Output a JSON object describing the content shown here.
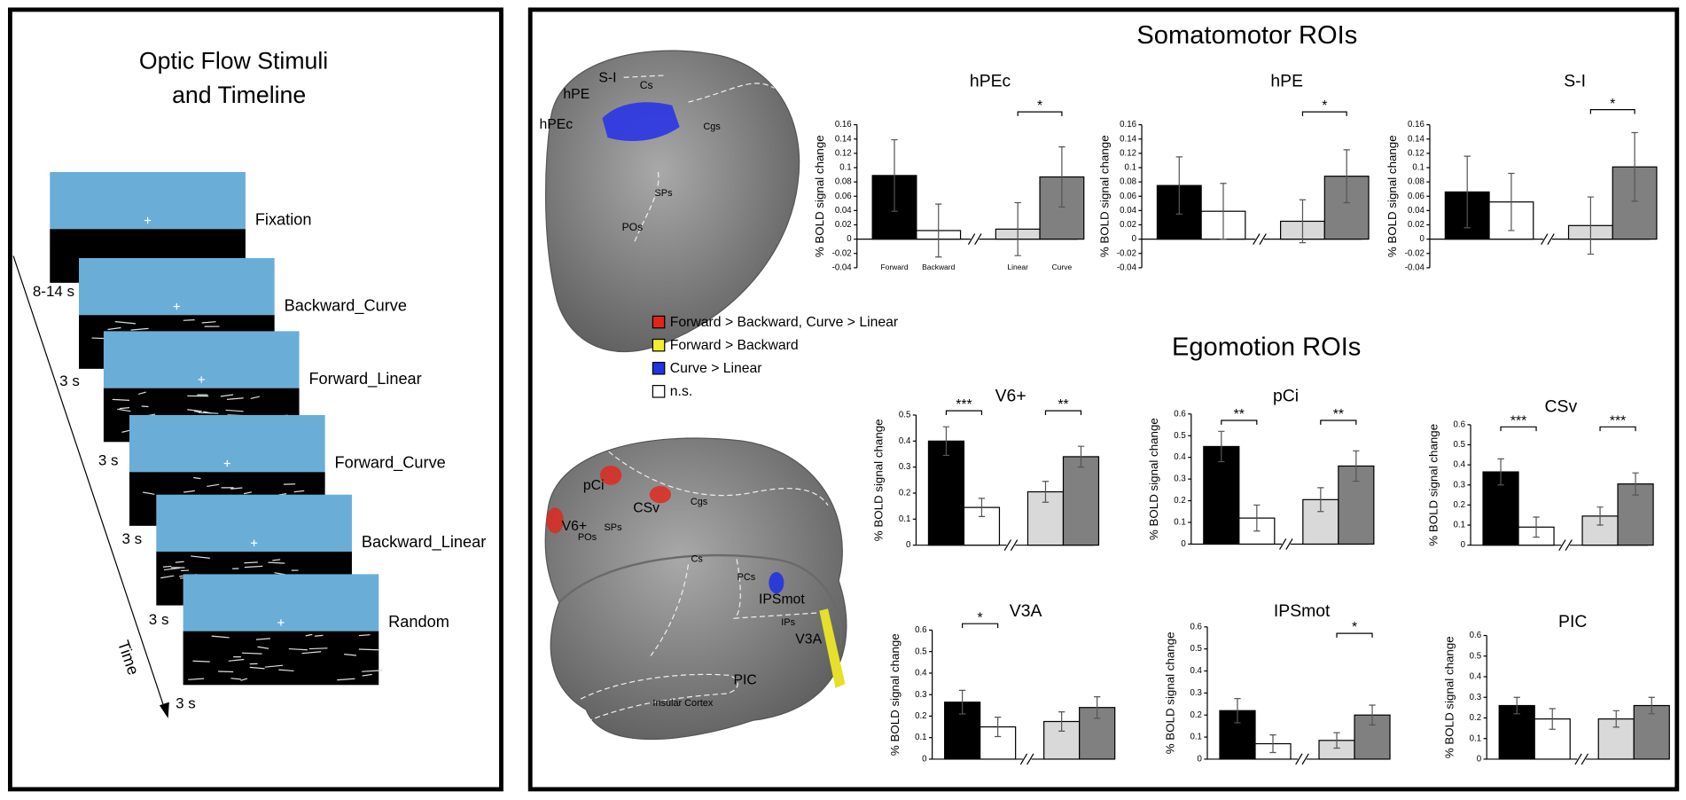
{
  "timeline": {
    "title_lines": [
      "Optic Flow Stimuli",
      "and Timeline"
    ],
    "frames": [
      {
        "label": "Fixation",
        "duration": "8-14 s"
      },
      {
        "label": "Backward_Curve",
        "duration": "3 s"
      },
      {
        "label": "Forward_Linear",
        "duration": "3 s"
      },
      {
        "label": "Forward_Curve",
        "duration": "3 s"
      },
      {
        "label": "Backward_Linear",
        "duration": "3 s"
      },
      {
        "label": "Random",
        "duration": "3 s"
      }
    ],
    "axis_label": "Time"
  },
  "section_titles": [
    "Somatomotor ROIs",
    "Egomotion ROIs"
  ],
  "legend": [
    {
      "label": "Forward > Backward, Curve > Linear",
      "color": "#e3241c"
    },
    {
      "label": "Forward > Backward",
      "color": "#f2ee2e"
    },
    {
      "label": "Curve > Linear",
      "color": "#2233e0"
    },
    {
      "label": "n.s.",
      "color": "#ffffff"
    }
  ],
  "brain_labels": {
    "top": [
      "S-I",
      "Cs",
      "hPE",
      "hPEc",
      "Cgs",
      "SPs",
      "POs"
    ],
    "bottom": [
      "pCi",
      "CSv",
      "Cgs",
      "V6+",
      "POs",
      "SPs",
      "Cs",
      "PCs",
      "IPSmot",
      "IPs",
      "V3A",
      "Insular Cortex",
      "PIC"
    ]
  },
  "chart_data": [
    {
      "type": "bar",
      "title": "hPEc",
      "y_label": "% BOLD signal change",
      "categories": [
        "Forward",
        "Backward",
        "Linear",
        "Curve"
      ],
      "colors": [
        "#000000",
        "#ffffff",
        "#d9d9d9",
        "#808080"
      ],
      "values": [
        0.089,
        0.012,
        0.014,
        0.087
      ],
      "errors": [
        0.05,
        0.037,
        0.037,
        0.042
      ],
      "significance": [
        null,
        "*"
      ],
      "ylim": [
        -0.04,
        0.16
      ],
      "yticks": [
        -0.04,
        -0.02,
        0,
        0.02,
        0.04,
        0.06,
        0.08,
        0.1,
        0.12,
        0.14,
        0.16
      ]
    },
    {
      "type": "bar",
      "title": "hPE",
      "y_label": "% BOLD signal change",
      "categories": [
        null,
        null,
        null,
        null
      ],
      "colors": [
        "#000000",
        "#ffffff",
        "#d9d9d9",
        "#808080"
      ],
      "values": [
        0.075,
        0.039,
        0.025,
        0.088
      ],
      "errors": [
        0.04,
        0.039,
        0.03,
        0.037
      ],
      "significance": [
        null,
        "*"
      ],
      "ylim": [
        -0.04,
        0.16
      ],
      "yticks": [
        -0.04,
        -0.02,
        0,
        0.02,
        0.04,
        0.06,
        0.08,
        0.1,
        0.12,
        0.14,
        0.16
      ]
    },
    {
      "type": "bar",
      "title": "S-I",
      "y_label": "% BOLD signal change",
      "categories": [
        null,
        null,
        null,
        null
      ],
      "colors": [
        "#000000",
        "#ffffff",
        "#d9d9d9",
        "#808080"
      ],
      "values": [
        0.066,
        0.052,
        0.019,
        0.101
      ],
      "errors": [
        0.05,
        0.04,
        0.04,
        0.048
      ],
      "significance": [
        null,
        "*"
      ],
      "ylim": [
        -0.04,
        0.16
      ],
      "yticks": [
        -0.04,
        -0.02,
        0,
        0.02,
        0.04,
        0.06,
        0.08,
        0.1,
        0.12,
        0.14,
        0.16
      ]
    },
    {
      "type": "bar",
      "title": "V6+",
      "y_label": "% BOLD signal change",
      "categories": [
        null,
        null,
        null,
        null
      ],
      "colors": [
        "#000000",
        "#ffffff",
        "#d9d9d9",
        "#808080"
      ],
      "values": [
        0.4,
        0.145,
        0.205,
        0.34
      ],
      "errors": [
        0.055,
        0.035,
        0.04,
        0.04
      ],
      "significance": [
        "***",
        "**"
      ],
      "ylim": [
        0,
        0.5
      ],
      "yticks": [
        0,
        0.1,
        0.2,
        0.3,
        0.4,
        0.5
      ]
    },
    {
      "type": "bar",
      "title": "pCi",
      "y_label": "% BOLD signal change",
      "categories": [
        null,
        null,
        null,
        null
      ],
      "colors": [
        "#000000",
        "#ffffff",
        "#d9d9d9",
        "#808080"
      ],
      "values": [
        0.45,
        0.12,
        0.205,
        0.36
      ],
      "errors": [
        0.07,
        0.06,
        0.055,
        0.07
      ],
      "significance": [
        "**",
        "**"
      ],
      "ylim": [
        0,
        0.6
      ],
      "yticks": [
        0,
        0.1,
        0.2,
        0.3,
        0.4,
        0.5,
        0.6
      ]
    },
    {
      "type": "bar",
      "title": "CSv",
      "y_label": "% BOLD signal change",
      "categories": [
        null,
        null,
        null,
        null
      ],
      "colors": [
        "#000000",
        "#ffffff",
        "#d9d9d9",
        "#808080"
      ],
      "values": [
        0.365,
        0.09,
        0.145,
        0.305
      ],
      "errors": [
        0.065,
        0.05,
        0.045,
        0.055
      ],
      "significance": [
        "***",
        "***"
      ],
      "ylim": [
        0,
        0.6
      ],
      "yticks": [
        0,
        0.1,
        0.2,
        0.3,
        0.4,
        0.5,
        0.6
      ]
    },
    {
      "type": "bar",
      "title": "V3A",
      "y_label": "% BOLD signal change",
      "categories": [
        null,
        null,
        null,
        null
      ],
      "colors": [
        "#000000",
        "#ffffff",
        "#d9d9d9",
        "#808080"
      ],
      "values": [
        0.265,
        0.15,
        0.175,
        0.24
      ],
      "errors": [
        0.055,
        0.045,
        0.045,
        0.05
      ],
      "significance": [
        "*",
        null
      ],
      "ylim": [
        0,
        0.6
      ],
      "yticks": [
        0,
        0.1,
        0.2,
        0.3,
        0.4,
        0.5,
        0.6
      ]
    },
    {
      "type": "bar",
      "title": "IPSmot",
      "y_label": "% BOLD signal change",
      "categories": [
        null,
        null,
        null,
        null
      ],
      "colors": [
        "#000000",
        "#ffffff",
        "#d9d9d9",
        "#808080"
      ],
      "values": [
        0.22,
        0.07,
        0.085,
        0.2
      ],
      "errors": [
        0.055,
        0.04,
        0.035,
        0.045
      ],
      "significance": [
        null,
        "*"
      ],
      "ylim": [
        0,
        0.6
      ],
      "yticks": [
        0,
        0.1,
        0.2,
        0.3,
        0.4,
        0.5,
        0.6
      ]
    },
    {
      "type": "bar",
      "title": "PIC",
      "y_label": "% BOLD signal change",
      "categories": [
        null,
        null,
        null,
        null
      ],
      "colors": [
        "#000000",
        "#ffffff",
        "#d9d9d9",
        "#808080"
      ],
      "values": [
        0.26,
        0.195,
        0.195,
        0.26
      ],
      "errors": [
        0.04,
        0.05,
        0.04,
        0.04
      ],
      "significance": [
        null,
        null
      ],
      "ylim": [
        0,
        0.6
      ],
      "yticks": [
        0,
        0.1,
        0.2,
        0.3,
        0.4,
        0.5,
        0.6
      ]
    }
  ]
}
